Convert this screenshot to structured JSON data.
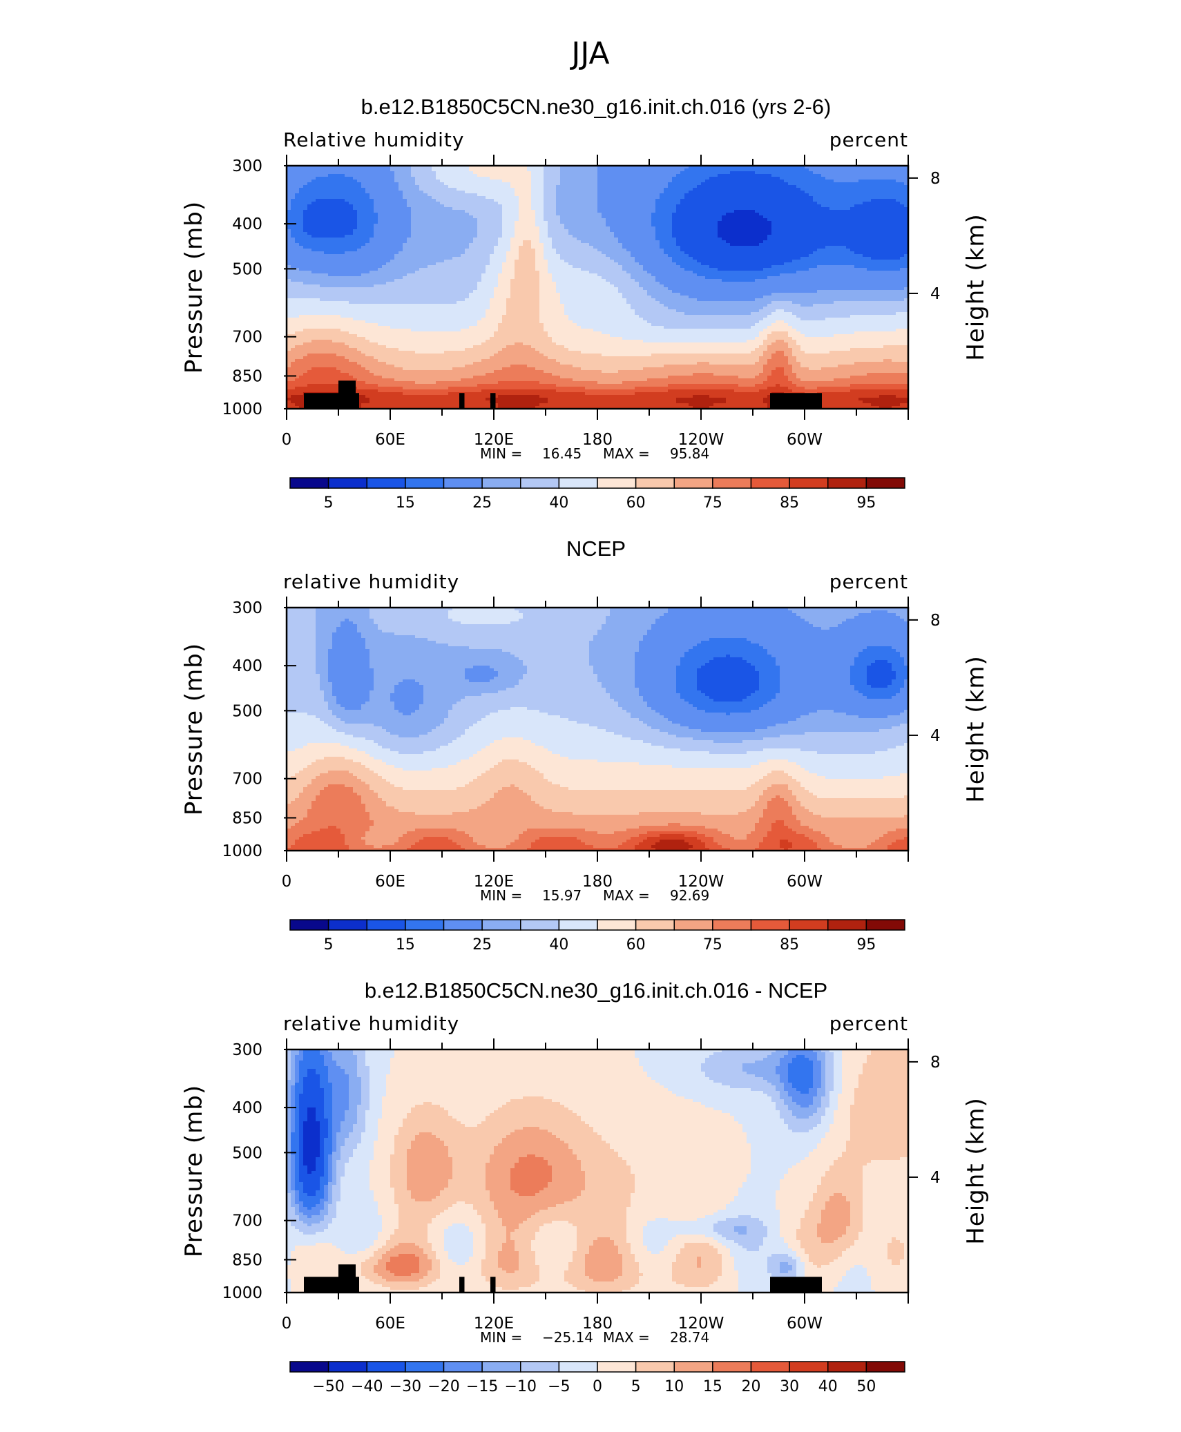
{
  "figure_title": "JJA",
  "colors": [
    "#08088c",
    "#0c2fcc",
    "#1a55e6",
    "#3375ef",
    "#5f8ff2",
    "#8aadf2",
    "#b3c8f5",
    "#d9e6fa",
    "#fde6d6",
    "#f9c9ad",
    "#f3a584",
    "#ec7c5a",
    "#e55a3a",
    "#d23d20",
    "#b0220f",
    "#820a06"
  ],
  "chart_data": [
    {
      "type": "heatmap",
      "title": "b.e12.B1850C5CN.ne30_g16.init.ch.016 (yrs 2-6)",
      "variable_label": "Relative humidity",
      "units_label": "percent",
      "ylabel": "Pressure (mb)",
      "ylabel_right": "Height (km)",
      "x_ticks": [
        "0",
        "60E",
        "120E",
        "180",
        "120W",
        "60W"
      ],
      "x_values": [
        0,
        60,
        120,
        180,
        240,
        300
      ],
      "xlim": [
        0,
        360
      ],
      "y_ticks": [
        "300",
        "400",
        "500",
        "700",
        "850",
        "1000"
      ],
      "y_values": [
        300,
        400,
        500,
        700,
        850,
        1000
      ],
      "ylim": [
        1000,
        300
      ],
      "right_ticks": [
        "8",
        "4"
      ],
      "right_values": [
        8,
        4
      ],
      "min_label": "MIN =",
      "min_value": "16.45",
      "max_label": "MAX =",
      "max_value": "95.84",
      "colorbar_levels": [
        "5",
        "15",
        "25",
        "40",
        "60",
        "75",
        "85",
        "95"
      ],
      "terrain": true
    },
    {
      "type": "heatmap",
      "title": "NCEP",
      "variable_label": "relative humidity",
      "units_label": "percent",
      "ylabel": "Pressure (mb)",
      "ylabel_right": "Height (km)",
      "x_ticks": [
        "0",
        "60E",
        "120E",
        "180",
        "120W",
        "60W"
      ],
      "x_values": [
        0,
        60,
        120,
        180,
        240,
        300
      ],
      "xlim": [
        0,
        360
      ],
      "y_ticks": [
        "300",
        "400",
        "500",
        "700",
        "850",
        "1000"
      ],
      "y_values": [
        300,
        400,
        500,
        700,
        850,
        1000
      ],
      "ylim": [
        1000,
        300
      ],
      "right_ticks": [
        "8",
        "4"
      ],
      "right_values": [
        8,
        4
      ],
      "min_label": "MIN =",
      "min_value": "15.97",
      "max_label": "MAX =",
      "max_value": "92.69",
      "colorbar_levels": [
        "5",
        "15",
        "25",
        "40",
        "60",
        "75",
        "85",
        "95"
      ],
      "terrain": false
    },
    {
      "type": "heatmap",
      "title": "b.e12.B1850C5CN.ne30_g16.init.ch.016 - NCEP",
      "variable_label": "relative humidity",
      "units_label": "percent",
      "ylabel": "Pressure (mb)",
      "ylabel_right": "Height (km)",
      "x_ticks": [
        "0",
        "60E",
        "120E",
        "180",
        "120W",
        "60W"
      ],
      "x_values": [
        0,
        60,
        120,
        180,
        240,
        300
      ],
      "xlim": [
        0,
        360
      ],
      "y_ticks": [
        "300",
        "400",
        "500",
        "700",
        "850",
        "1000"
      ],
      "y_values": [
        300,
        400,
        500,
        700,
        850,
        1000
      ],
      "ylim": [
        1000,
        300
      ],
      "right_ticks": [
        "8",
        "4"
      ],
      "right_values": [
        8,
        4
      ],
      "min_label": "MIN =",
      "min_value": "−25.14",
      "max_label": "MAX =",
      "max_value": "28.74",
      "colorbar_levels": [
        "−50",
        "−40",
        "−30",
        "−20",
        "−15",
        "−10",
        "−5",
        "0",
        "5",
        "10",
        "15",
        "20",
        "30",
        "40",
        "50"
      ],
      "terrain": true
    }
  ]
}
